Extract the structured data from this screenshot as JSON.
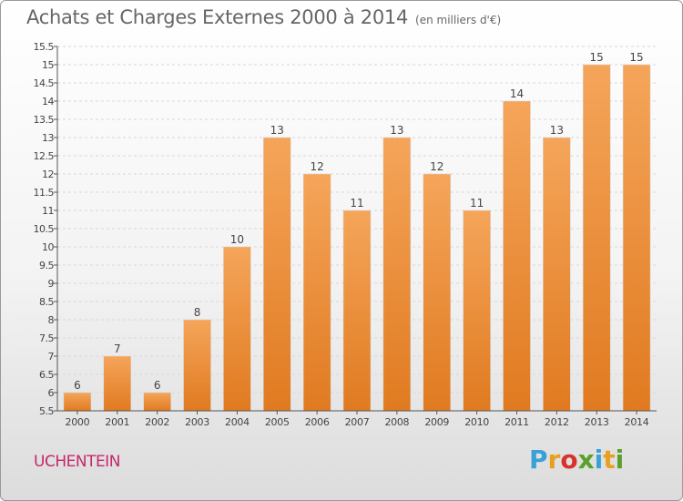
{
  "title": "Achats et Charges Externes 2000 à 2014",
  "subtitle": "(en milliers d'€)",
  "commune": "UCHENTEIN",
  "brand": {
    "letters": [
      "P",
      "r",
      "o",
      "x",
      "i",
      "t",
      "i"
    ],
    "colors": [
      "#3aa0d8",
      "#e8a020",
      "#d9322b",
      "#5aa02c",
      "#3aa0d8",
      "#e8a020",
      "#5aa02c"
    ]
  },
  "colors": {
    "bar_light": "#f5a55a",
    "bar_dark": "#e07a20",
    "grid": "#d8d8d8",
    "axis": "#555555",
    "label": "#444444"
  },
  "chart_data": {
    "type": "bar",
    "categories": [
      "2000",
      "2001",
      "2002",
      "2003",
      "2004",
      "2005",
      "2006",
      "2007",
      "2008",
      "2009",
      "2010",
      "2011",
      "2012",
      "2013",
      "2014"
    ],
    "values": [
      6,
      7,
      6,
      8,
      10,
      13,
      12,
      11,
      13,
      12,
      11,
      14,
      13,
      15,
      15
    ],
    "data_labels": [
      "6",
      "7",
      "6",
      "8",
      "10",
      "13",
      "12",
      "11",
      "13",
      "12",
      "11",
      "14",
      "13",
      "15",
      "15"
    ],
    "ylim": [
      5.5,
      15.5
    ],
    "yticks": [
      5.5,
      6,
      6.5,
      7,
      7.5,
      8,
      8.5,
      9,
      9.5,
      10,
      10.5,
      11,
      11.5,
      12,
      12.5,
      13,
      13.5,
      14,
      14.5,
      15,
      15.5
    ],
    "ytick_labels": [
      "5.5",
      "6",
      "6.5",
      "7",
      "7.5",
      "8",
      "8.5",
      "9",
      "9.5",
      "10",
      "10.5",
      "11",
      "11.5",
      "12",
      "12.5",
      "13",
      "13.5",
      "14",
      "14.5",
      "15",
      "15.5"
    ],
    "grid": true,
    "xlabel": "",
    "ylabel": ""
  }
}
